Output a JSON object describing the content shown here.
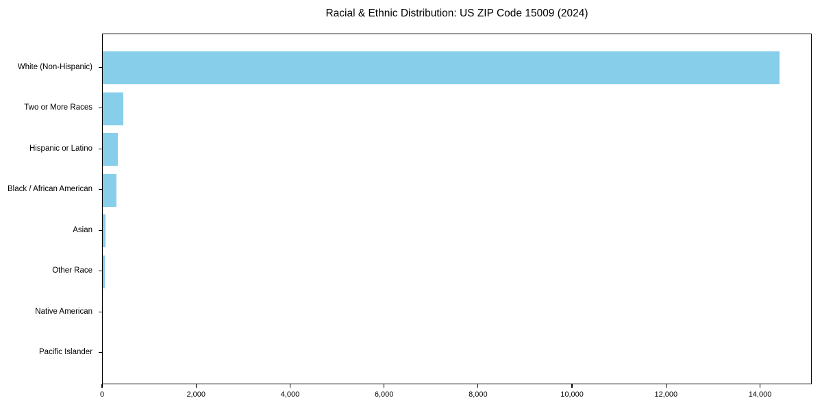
{
  "chart_data": {
    "type": "bar",
    "orientation": "horizontal",
    "title": "Racial & Ethnic Distribution: US ZIP Code 15009 (2024)",
    "categories": [
      "White (Non-Hispanic)",
      "Two or More Races",
      "Hispanic or Latino",
      "Black / African American",
      "Asian",
      "Other Race",
      "Native American",
      "Pacific Islander"
    ],
    "values": [
      14400,
      440,
      320,
      285,
      65,
      40,
      0,
      0
    ],
    "bar_color": "#87CEEB",
    "axis_color": "#000000",
    "text_color": "#000000",
    "background_color": "#ffffff",
    "xlim": [
      0,
      15100
    ],
    "xticks": [
      0,
      2000,
      4000,
      6000,
      8000,
      10000,
      12000,
      14000
    ],
    "xtick_labels": [
      "0",
      "2,000",
      "4,000",
      "6,000",
      "8,000",
      "10,000",
      "12,000",
      "14,000"
    ],
    "xlabel": "",
    "ylabel": "",
    "grid": false,
    "legend": "none"
  }
}
